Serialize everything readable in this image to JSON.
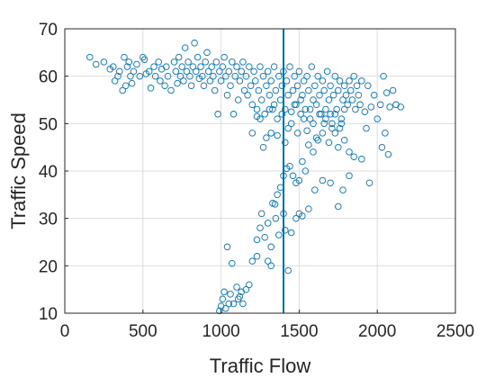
{
  "chart_data": {
    "type": "scatter",
    "xlabel": "Traffic Flow",
    "ylabel": "Traffic Speed",
    "xlim": [
      0,
      2500
    ],
    "ylim": [
      10,
      70
    ],
    "xticks": [
      0,
      500,
      1000,
      1500,
      2000,
      2500
    ],
    "yticks": [
      10,
      20,
      30,
      40,
      50,
      60,
      70
    ],
    "grid": true,
    "marker": "open-circle",
    "color": "#0072BD",
    "reference_line": {
      "orientation": "vertical",
      "x": 1400,
      "color": "#0072BD"
    },
    "series": [
      {
        "points": [
          [
            160,
            64
          ],
          [
            200,
            62.5
          ],
          [
            250,
            63
          ],
          [
            290,
            61.5
          ],
          [
            310,
            62
          ],
          [
            320,
            59
          ],
          [
            340,
            60
          ],
          [
            350,
            61
          ],
          [
            370,
            57
          ],
          [
            380,
            64
          ],
          [
            390,
            58
          ],
          [
            400,
            62
          ],
          [
            410,
            63
          ],
          [
            420,
            60
          ],
          [
            430,
            58.5
          ],
          [
            440,
            61
          ],
          [
            460,
            62.5
          ],
          [
            480,
            60
          ],
          [
            500,
            64
          ],
          [
            510,
            63.5
          ],
          [
            520,
            60.5
          ],
          [
            540,
            61
          ],
          [
            550,
            57.5
          ],
          [
            570,
            62
          ],
          [
            580,
            60
          ],
          [
            600,
            63
          ],
          [
            610,
            59
          ],
          [
            620,
            61.5
          ],
          [
            640,
            58
          ],
          [
            650,
            62
          ],
          [
            660,
            60
          ],
          [
            680,
            57
          ],
          [
            700,
            63
          ],
          [
            710,
            61
          ],
          [
            720,
            58.5
          ],
          [
            730,
            64
          ],
          [
            740,
            60
          ],
          [
            750,
            62
          ],
          [
            760,
            59
          ],
          [
            770,
            66
          ],
          [
            780,
            61
          ],
          [
            790,
            63
          ],
          [
            800,
            60
          ],
          [
            810,
            58
          ],
          [
            820,
            62
          ],
          [
            830,
            67
          ],
          [
            840,
            61
          ],
          [
            850,
            64
          ],
          [
            860,
            59.5
          ],
          [
            870,
            62
          ],
          [
            880,
            60
          ],
          [
            890,
            58
          ],
          [
            900,
            63
          ],
          [
            910,
            65
          ],
          [
            920,
            61
          ],
          [
            930,
            59
          ],
          [
            940,
            62
          ],
          [
            950,
            60
          ],
          [
            960,
            57
          ],
          [
            970,
            63
          ],
          [
            980,
            52
          ],
          [
            990,
            61
          ],
          [
            1000,
            59
          ],
          [
            1010,
            62
          ],
          [
            1020,
            64
          ],
          [
            1030,
            60
          ],
          [
            1040,
            56
          ],
          [
            1050,
            61
          ],
          [
            1060,
            58
          ],
          [
            1070,
            63
          ],
          [
            1080,
            52
          ],
          [
            1090,
            60
          ],
          [
            1100,
            62
          ],
          [
            1110,
            55
          ],
          [
            1120,
            59
          ],
          [
            1130,
            61
          ],
          [
            1140,
            63
          ],
          [
            1150,
            57
          ],
          [
            1160,
            60
          ],
          [
            1170,
            56
          ],
          [
            1180,
            62
          ],
          [
            1190,
            58
          ],
          [
            1200,
            54
          ],
          [
            1210,
            61
          ],
          [
            1220,
            59
          ],
          [
            1230,
            51.5
          ],
          [
            1240,
            57
          ],
          [
            1250,
            62
          ],
          [
            1260,
            55
          ],
          [
            1270,
            60
          ],
          [
            1280,
            52
          ],
          [
            1290,
            58
          ],
          [
            1300,
            61
          ],
          [
            1310,
            56
          ],
          [
            1320,
            59
          ],
          [
            1330,
            53
          ],
          [
            1340,
            62
          ],
          [
            1350,
            57
          ],
          [
            1360,
            51
          ],
          [
            1370,
            60
          ],
          [
            1380,
            55
          ],
          [
            1390,
            58
          ],
          [
            1400,
            61
          ],
          [
            1410,
            53
          ],
          [
            1420,
            59
          ],
          [
            1430,
            56
          ],
          [
            1440,
            62
          ],
          [
            1450,
            50
          ],
          [
            1460,
            57
          ],
          [
            1470,
            60
          ],
          [
            1480,
            54
          ],
          [
            1490,
            58
          ],
          [
            1500,
            61
          ],
          [
            1510,
            52
          ],
          [
            1520,
            56
          ],
          [
            1530,
            59
          ],
          [
            1540,
            53
          ],
          [
            1550,
            60
          ],
          [
            1560,
            57
          ],
          [
            1570,
            51
          ],
          [
            1580,
            62
          ],
          [
            1590,
            55
          ],
          [
            1600,
            58
          ],
          [
            1610,
            54
          ],
          [
            1620,
            60
          ],
          [
            1630,
            56
          ],
          [
            1640,
            52
          ],
          [
            1650,
            59
          ],
          [
            1660,
            57
          ],
          [
            1670,
            53
          ],
          [
            1680,
            61
          ],
          [
            1690,
            55
          ],
          [
            1700,
            58
          ],
          [
            1710,
            50
          ],
          [
            1720,
            56
          ],
          [
            1730,
            60
          ],
          [
            1740,
            53
          ],
          [
            1750,
            57
          ],
          [
            1760,
            59
          ],
          [
            1770,
            51
          ],
          [
            1780,
            55
          ],
          [
            1790,
            58
          ],
          [
            1800,
            56
          ],
          [
            1810,
            54
          ],
          [
            1820,
            59
          ],
          [
            1830,
            57
          ],
          [
            1840,
            55
          ],
          [
            1850,
            60
          ],
          [
            1860,
            53
          ],
          [
            1870,
            58
          ],
          [
            1880,
            56
          ],
          [
            1890,
            54
          ],
          [
            1900,
            59
          ],
          [
            1920,
            52.5
          ],
          [
            1940,
            58
          ],
          [
            1960,
            53.5
          ],
          [
            1980,
            56
          ],
          [
            2000,
            51
          ],
          [
            2020,
            54
          ],
          [
            2040,
            60
          ],
          [
            2060,
            56.5
          ],
          [
            2080,
            53.5
          ],
          [
            2100,
            57
          ],
          [
            2120,
            54
          ],
          [
            2150,
            53.5
          ],
          [
            1930,
            49
          ],
          [
            2050,
            48
          ],
          [
            2030,
            45
          ],
          [
            2070,
            43.5
          ],
          [
            1900,
            42.5
          ],
          [
            1850,
            43
          ],
          [
            1820,
            44
          ],
          [
            1790,
            46.5
          ],
          [
            1760,
            49
          ],
          [
            1730,
            48
          ],
          [
            1700,
            52
          ],
          [
            1660,
            50
          ],
          [
            1620,
            46.5
          ],
          [
            1590,
            44
          ],
          [
            1560,
            45.5
          ],
          [
            1540,
            40
          ],
          [
            1520,
            42
          ],
          [
            1500,
            38
          ],
          [
            1480,
            37.5
          ],
          [
            1460,
            39
          ],
          [
            1440,
            41
          ],
          [
            1420,
            40.5
          ],
          [
            1400,
            39
          ],
          [
            1380,
            36.5
          ],
          [
            1360,
            35
          ],
          [
            1345,
            33
          ],
          [
            1330,
            33.2
          ],
          [
            1500,
            31
          ],
          [
            1480,
            30
          ],
          [
            1520,
            30.5
          ],
          [
            1560,
            32
          ],
          [
            1600,
            36
          ],
          [
            1650,
            38
          ],
          [
            1700,
            37.5
          ],
          [
            1750,
            32.5
          ],
          [
            1780,
            36
          ],
          [
            1820,
            39
          ],
          [
            1950,
            37.5
          ],
          [
            1400,
            31
          ],
          [
            1350,
            30
          ],
          [
            1300,
            29
          ],
          [
            1260,
            31
          ],
          [
            1250,
            28
          ],
          [
            1230,
            25.5
          ],
          [
            1280,
            26
          ],
          [
            1320,
            24
          ],
          [
            1370,
            26.5
          ],
          [
            1410,
            27.5
          ],
          [
            1450,
            27
          ],
          [
            1300,
            21
          ],
          [
            1320,
            20
          ],
          [
            1230,
            22
          ],
          [
            1200,
            21
          ],
          [
            1180,
            16
          ],
          [
            1160,
            15
          ],
          [
            1140,
            12
          ],
          [
            1130,
            14.5
          ],
          [
            1120,
            13.5
          ],
          [
            1110,
            13
          ],
          [
            1100,
            15.5
          ],
          [
            1080,
            12
          ],
          [
            1060,
            14
          ],
          [
            1050,
            12
          ],
          [
            1030,
            11
          ],
          [
            1020,
            14.5
          ],
          [
            1010,
            13
          ],
          [
            1000,
            11.5
          ],
          [
            990,
            10.5
          ],
          [
            1040,
            24
          ],
          [
            1070,
            20.5
          ],
          [
            1430,
            19
          ],
          [
            1200,
            48
          ],
          [
            1230,
            53
          ],
          [
            1250,
            51
          ],
          [
            1270,
            45
          ],
          [
            1290,
            47
          ],
          [
            1310,
            53
          ],
          [
            1320,
            48
          ],
          [
            1340,
            54
          ],
          [
            1360,
            47.5
          ],
          [
            1390,
            52
          ],
          [
            1410,
            46
          ],
          [
            1430,
            49
          ],
          [
            1450,
            52.5
          ],
          [
            1470,
            54
          ],
          [
            1490,
            48
          ],
          [
            1510,
            55
          ],
          [
            1530,
            51
          ],
          [
            1550,
            48.5
          ],
          [
            1570,
            53
          ],
          [
            1590,
            50
          ],
          [
            1610,
            47
          ],
          [
            1630,
            52
          ],
          [
            1650,
            48
          ],
          [
            1670,
            51
          ],
          [
            1690,
            46
          ],
          [
            1710,
            49
          ],
          [
            1730,
            52
          ],
          [
            1750,
            45
          ],
          [
            1770,
            50
          ],
          [
            1790,
            53
          ]
        ]
      }
    ]
  }
}
